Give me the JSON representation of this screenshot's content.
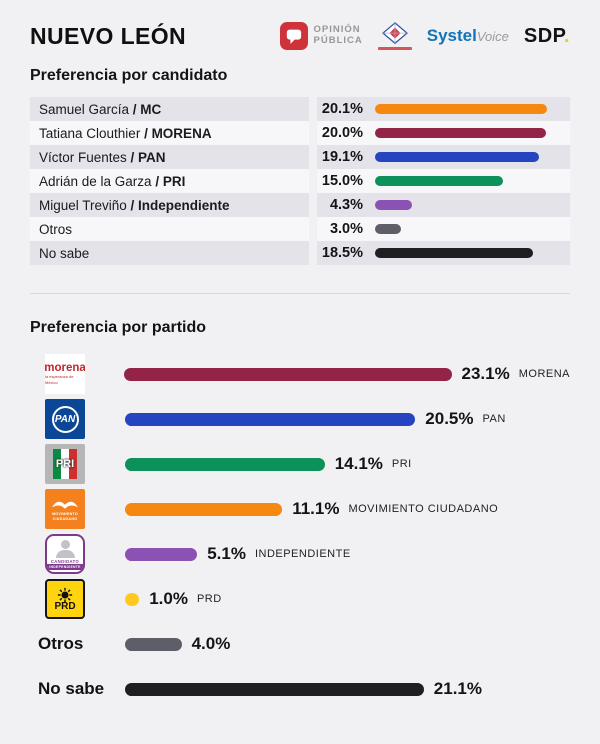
{
  "header": {
    "title": "NUEVO LEÓN",
    "logos": {
      "opinion_publica": {
        "line1": "OPINIÓN",
        "line2": "PÚBLICA"
      },
      "systel": {
        "part1": "Systel",
        "part2": "Voice"
      },
      "sdp": {
        "text": "SDP",
        "dot": "."
      }
    }
  },
  "candidate_section": {
    "heading": "Preferencia por candidato",
    "rows": [
      {
        "name": "Samuel García",
        "party": "MC",
        "value": "20.1%",
        "pct": 20.1,
        "color": "#f6870f"
      },
      {
        "name": "Tatiana Clouthier",
        "party": "MORENA",
        "value": "20.0%",
        "pct": 20.0,
        "color": "#932447"
      },
      {
        "name": "Víctor Fuentes",
        "party": "PAN",
        "value": "19.1%",
        "pct": 19.1,
        "color": "#2444c0"
      },
      {
        "name": "Adrián de la Garza",
        "party": "PRI",
        "value": "15.0%",
        "pct": 15.0,
        "color": "#0b9159"
      },
      {
        "name": "Miguel Treviño",
        "party": "Independiente",
        "value": "4.3%",
        "pct": 4.3,
        "color": "#8b52b3"
      },
      {
        "name": "Otros",
        "party": "",
        "value": "3.0%",
        "pct": 3.0,
        "color": "#5e5e68"
      },
      {
        "name": "No sabe",
        "party": "",
        "value": "18.5%",
        "pct": 18.5,
        "color": "#1f1f22"
      }
    ]
  },
  "party_section": {
    "heading": "Preferencia por partido",
    "rows": [
      {
        "logo": "morena",
        "logo_text": {
          "main": "morena",
          "tagline": "la esperanza de México"
        },
        "value": "23.1%",
        "pct": 23.1,
        "label": "MORENA",
        "color": "#932447"
      },
      {
        "logo": "pan",
        "logo_text": {
          "text": "PAN"
        },
        "value": "20.5%",
        "pct": 20.5,
        "label": "PAN",
        "color": "#2444c0"
      },
      {
        "logo": "pri",
        "logo_text": {
          "text": "PRI"
        },
        "value": "14.1%",
        "pct": 14.1,
        "label": "PRI",
        "color": "#0b9159"
      },
      {
        "logo": "mc",
        "logo_text": {
          "sub1": "MOVIMIENTO",
          "sub2": "CIUDADANO"
        },
        "value": "11.1%",
        "pct": 11.1,
        "label": "MOVIMIENTO CIUDADANO",
        "color": "#f6870f"
      },
      {
        "logo": "independiente",
        "logo_text": {
          "line1": "CANDIDATO",
          "line2": "INDEPENDIENTE"
        },
        "value": "5.1%",
        "pct": 5.1,
        "label": "INDEPENDIENTE",
        "color": "#8b52b3"
      },
      {
        "logo": "prd",
        "logo_text": {
          "text": "PRD"
        },
        "value": "1.0%",
        "pct": 1.0,
        "label": "PRD",
        "color": "#ffc91f"
      },
      {
        "logo": null,
        "leading_label": "Otros",
        "value": "4.0%",
        "pct": 4.0,
        "label": "",
        "color": "#5e5e68"
      },
      {
        "logo": null,
        "leading_label": "No sabe",
        "value": "21.1%",
        "pct": 21.1,
        "label": "",
        "color": "#1f1f22"
      }
    ]
  },
  "chart_data": [
    {
      "type": "bar",
      "title": "Preferencia por candidato",
      "categories": [
        "Samuel García / MC",
        "Tatiana Clouthier / MORENA",
        "Víctor Fuentes / PAN",
        "Adrián de la Garza / PRI",
        "Miguel Treviño / Independiente",
        "Otros",
        "No sabe"
      ],
      "values": [
        20.1,
        20.0,
        19.1,
        15.0,
        4.3,
        3.0,
        18.5
      ],
      "orientation": "horizontal",
      "unit": "%",
      "colors": [
        "#f6870f",
        "#932447",
        "#2444c0",
        "#0b9159",
        "#8b52b3",
        "#5e5e68",
        "#1f1f22"
      ],
      "xlabel": "",
      "ylabel": "",
      "xlim": [
        0,
        21
      ],
      "grid": false,
      "legend": false
    },
    {
      "type": "bar",
      "title": "Preferencia por partido",
      "categories": [
        "MORENA",
        "PAN",
        "PRI",
        "MOVIMIENTO CIUDADANO",
        "INDEPENDIENTE",
        "PRD",
        "Otros",
        "No sabe"
      ],
      "values": [
        23.1,
        20.5,
        14.1,
        11.1,
        5.1,
        1.0,
        4.0,
        21.1
      ],
      "orientation": "horizontal",
      "unit": "%",
      "colors": [
        "#932447",
        "#2444c0",
        "#0b9159",
        "#f6870f",
        "#8b52b3",
        "#ffc91f",
        "#5e5e68",
        "#1f1f22"
      ],
      "xlabel": "",
      "ylabel": "",
      "xlim": [
        0,
        24
      ],
      "grid": false,
      "legend": false
    }
  ]
}
